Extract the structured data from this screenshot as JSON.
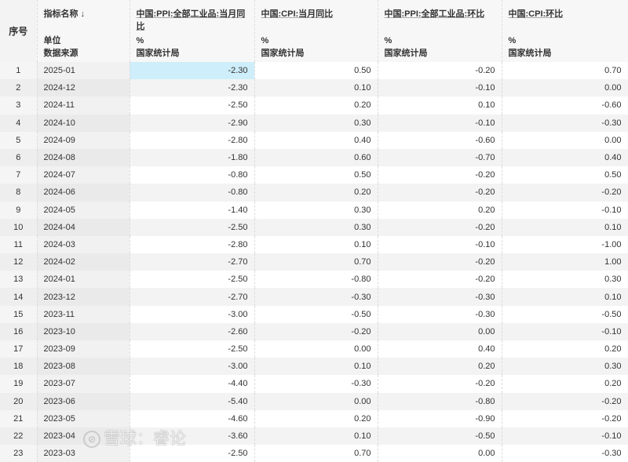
{
  "header": {
    "index_label": "序号",
    "meta_labels": {
      "name": "指标名称 ↓",
      "unit": "单位",
      "source": "数据来源"
    },
    "columns": [
      {
        "name": "中国:PPI:全部工业品:当月同比",
        "unit": "%",
        "source": "国家统计局"
      },
      {
        "name": "中国:CPI:当月同比",
        "unit": "%",
        "source": "国家统计局"
      },
      {
        "name": "中国:PPI:全部工业品:环比",
        "unit": "%",
        "source": "国家统计局"
      },
      {
        "name": "中国:CPI:环比",
        "unit": "%",
        "source": "国家统计局"
      }
    ]
  },
  "rows": [
    [
      "1",
      "2025-01",
      "-2.30",
      "0.50",
      "-0.20",
      "0.70"
    ],
    [
      "2",
      "2024-12",
      "-2.30",
      "0.10",
      "-0.10",
      "0.00"
    ],
    [
      "3",
      "2024-11",
      "-2.50",
      "0.20",
      "0.10",
      "-0.60"
    ],
    [
      "4",
      "2024-10",
      "-2.90",
      "0.30",
      "-0.10",
      "-0.30"
    ],
    [
      "5",
      "2024-09",
      "-2.80",
      "0.40",
      "-0.60",
      "0.00"
    ],
    [
      "6",
      "2024-08",
      "-1.80",
      "0.60",
      "-0.70",
      "0.40"
    ],
    [
      "7",
      "2024-07",
      "-0.80",
      "0.50",
      "-0.20",
      "0.50"
    ],
    [
      "8",
      "2024-06",
      "-0.80",
      "0.20",
      "-0.20",
      "-0.20"
    ],
    [
      "9",
      "2024-05",
      "-1.40",
      "0.30",
      "0.20",
      "-0.10"
    ],
    [
      "10",
      "2024-04",
      "-2.50",
      "0.30",
      "-0.20",
      "0.10"
    ],
    [
      "11",
      "2024-03",
      "-2.80",
      "0.10",
      "-0.10",
      "-1.00"
    ],
    [
      "12",
      "2024-02",
      "-2.70",
      "0.70",
      "-0.20",
      "1.00"
    ],
    [
      "13",
      "2024-01",
      "-2.50",
      "-0.80",
      "-0.20",
      "0.30"
    ],
    [
      "14",
      "2023-12",
      "-2.70",
      "-0.30",
      "-0.30",
      "0.10"
    ],
    [
      "15",
      "2023-11",
      "-3.00",
      "-0.50",
      "-0.30",
      "-0.50"
    ],
    [
      "16",
      "2023-10",
      "-2.60",
      "-0.20",
      "0.00",
      "-0.10"
    ],
    [
      "17",
      "2023-09",
      "-2.50",
      "0.00",
      "0.40",
      "0.20"
    ],
    [
      "18",
      "2023-08",
      "-3.00",
      "0.10",
      "0.20",
      "0.30"
    ],
    [
      "19",
      "2023-07",
      "-4.40",
      "-0.30",
      "-0.20",
      "0.20"
    ],
    [
      "20",
      "2023-06",
      "-5.40",
      "0.00",
      "-0.80",
      "-0.20"
    ],
    [
      "21",
      "2023-05",
      "-4.60",
      "0.20",
      "-0.90",
      "-0.20"
    ],
    [
      "22",
      "2023-04",
      "-3.60",
      "0.10",
      "-0.50",
      "-0.10"
    ],
    [
      "23",
      "2023-03",
      "-2.50",
      "0.70",
      "0.00",
      "-0.30"
    ]
  ],
  "selected_cell": {
    "row": 1,
    "column": "中国:PPI:全部工业品:当月同比"
  },
  "colors": {
    "selected": "#cdeefa",
    "header_bg": "#f7f7f7",
    "alt_row": "#f3f3f3"
  },
  "watermark": {
    "text": "雪球：睿论",
    "icon": "snowball-logo-icon"
  }
}
